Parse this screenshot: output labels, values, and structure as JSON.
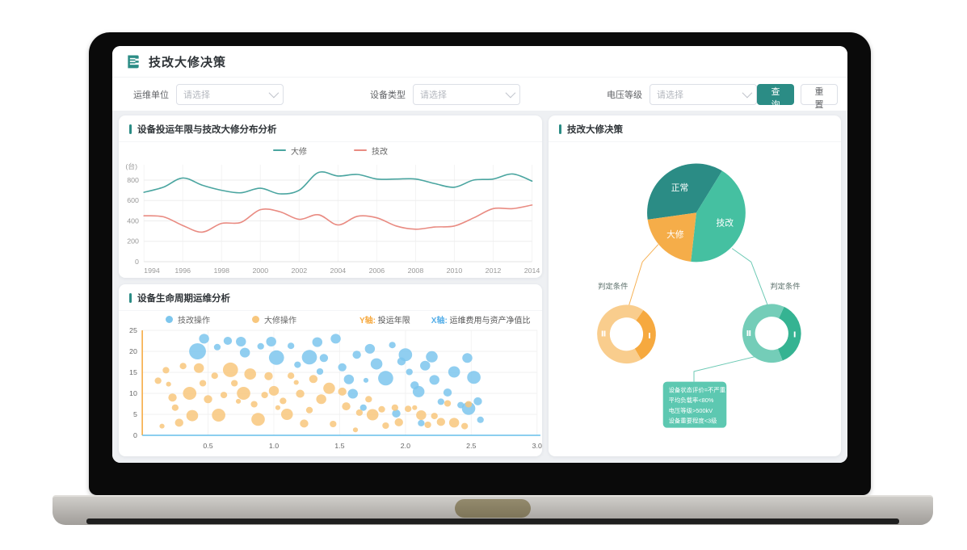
{
  "header": {
    "title": "技改大修决策"
  },
  "filters": {
    "fields": [
      {
        "label": "运维单位",
        "placeholder": "请选择"
      },
      {
        "label": "设备类型",
        "placeholder": "请选择"
      },
      {
        "label": "电压等级",
        "placeholder": "请选择"
      }
    ],
    "query_label": "查询",
    "reset_label": "重置"
  },
  "colors": {
    "teal": "#2b8c85",
    "bg": "#eef0f3"
  },
  "chart_data": [
    {
      "id": "line_chart",
      "type": "line",
      "title": "设备投运年限与技改大修分布分析",
      "unit_label": "(台)",
      "x": [
        1994,
        1995,
        1996,
        1997,
        1998,
        1999,
        2000,
        2001,
        2002,
        2003,
        2004,
        2005,
        2006,
        2007,
        2008,
        2009,
        2010,
        2011,
        2012,
        2013,
        2014
      ],
      "x_ticks": [
        1994,
        1996,
        1998,
        2000,
        2002,
        2004,
        2006,
        2008,
        2010,
        2012,
        2014
      ],
      "y_ticks": [
        0,
        200,
        400,
        600,
        800
      ],
      "ylim": [
        0,
        950
      ],
      "grid": true,
      "legend_position": "top-center",
      "series": [
        {
          "name": "大修",
          "color": "#4aa5a0",
          "values": [
            680,
            730,
            820,
            750,
            700,
            675,
            720,
            665,
            700,
            875,
            840,
            855,
            810,
            810,
            810,
            765,
            730,
            800,
            810,
            860,
            790
          ]
        },
        {
          "name": "技改",
          "color": "#e98b82",
          "values": [
            450,
            440,
            355,
            290,
            375,
            385,
            510,
            490,
            415,
            460,
            360,
            445,
            430,
            350,
            318,
            340,
            350,
            430,
            520,
            520,
            555
          ]
        }
      ]
    },
    {
      "id": "bubble_chart",
      "type": "scatter",
      "title": "设备生命周期运维分析",
      "xlim": [
        0,
        3.0
      ],
      "ylim": [
        0,
        25
      ],
      "x_ticks": [
        0.5,
        1.0,
        1.5,
        2.0,
        2.5,
        3.0
      ],
      "y_ticks": [
        0,
        5,
        10,
        15,
        20,
        25
      ],
      "y_axis_note": {
        "prefix": "Y轴:",
        "text": "投运年限",
        "color": "#f6a93f"
      },
      "x_axis_note": {
        "prefix": "X轴:",
        "text": "运维费用与资产净值比",
        "color": "#55aee8"
      },
      "y_axis_color": "#f6a93f",
      "x_axis_color": "#66bfea",
      "series": [
        {
          "name": "技改操作",
          "color": "#7dc6ed",
          "points": [
            [
              0.42,
              20,
              10
            ],
            [
              0.47,
              23,
              6
            ],
            [
              0.57,
              21,
              4
            ],
            [
              0.65,
              22.5,
              5
            ],
            [
              0.75,
              22.3,
              6
            ],
            [
              0.78,
              19.7,
              6
            ],
            [
              0.9,
              21.2,
              4
            ],
            [
              0.98,
              22.3,
              6
            ],
            [
              1.02,
              18.5,
              9
            ],
            [
              1.13,
              21.3,
              4
            ],
            [
              1.18,
              16.8,
              4
            ],
            [
              1.27,
              18.6,
              9
            ],
            [
              1.33,
              22.2,
              6
            ],
            [
              1.38,
              18.4,
              5
            ],
            [
              1.35,
              15.2,
              4
            ],
            [
              1.47,
              23,
              6
            ],
            [
              1.52,
              16.2,
              5
            ],
            [
              1.57,
              13.3,
              6
            ],
            [
              1.63,
              19.2,
              5
            ],
            [
              1.6,
              9.9,
              6
            ],
            [
              1.7,
              13.1,
              3
            ],
            [
              1.73,
              20.6,
              6
            ],
            [
              1.78,
              17,
              7
            ],
            [
              1.85,
              13.6,
              9
            ],
            [
              1.9,
              21.5,
              4
            ],
            [
              1.97,
              17.6,
              5
            ],
            [
              2.0,
              19.2,
              8
            ],
            [
              2.03,
              15.1,
              4
            ],
            [
              2.07,
              11.9,
              5
            ],
            [
              2.1,
              10.4,
              7
            ],
            [
              2.15,
              16.6,
              6
            ],
            [
              2.2,
              18.7,
              7
            ],
            [
              2.22,
              13.2,
              6
            ],
            [
              2.27,
              8,
              4
            ],
            [
              2.32,
              10.2,
              5
            ],
            [
              2.37,
              15.1,
              7
            ],
            [
              2.42,
              7.2,
              4
            ],
            [
              2.47,
              18.4,
              6
            ],
            [
              2.48,
              6.4,
              8
            ],
            [
              2.52,
              13.8,
              8
            ],
            [
              2.55,
              8.1,
              5
            ],
            [
              2.57,
              3.7,
              4
            ],
            [
              1.68,
              6.6,
              4
            ],
            [
              1.93,
              5.2,
              5
            ],
            [
              2.12,
              2.9,
              4
            ]
          ]
        },
        {
          "name": "大修操作",
          "color": "#f8c77d",
          "points": [
            [
              0.12,
              13,
              4
            ],
            [
              0.15,
              2.2,
              3
            ],
            [
              0.18,
              15.5,
              4
            ],
            [
              0.2,
              12.2,
              3
            ],
            [
              0.23,
              9,
              5
            ],
            [
              0.25,
              6.6,
              4
            ],
            [
              0.28,
              3,
              5
            ],
            [
              0.31,
              16.5,
              4
            ],
            [
              0.36,
              10,
              8
            ],
            [
              0.38,
              4.7,
              7
            ],
            [
              0.43,
              16,
              6
            ],
            [
              0.46,
              12.4,
              4
            ],
            [
              0.5,
              8.6,
              5
            ],
            [
              0.55,
              14.2,
              4
            ],
            [
              0.58,
              4.8,
              8
            ],
            [
              0.62,
              9.6,
              4
            ],
            [
              0.67,
              15.6,
              9
            ],
            [
              0.7,
              12.4,
              4
            ],
            [
              0.73,
              8.1,
              3
            ],
            [
              0.77,
              10,
              8
            ],
            [
              0.82,
              14.6,
              7
            ],
            [
              0.85,
              7.4,
              4
            ],
            [
              0.88,
              3.8,
              8
            ],
            [
              0.93,
              9.6,
              4
            ],
            [
              0.96,
              14.1,
              5
            ],
            [
              1.0,
              10.6,
              6
            ],
            [
              1.03,
              6.6,
              3
            ],
            [
              1.07,
              8.2,
              4
            ],
            [
              1.1,
              5,
              7
            ],
            [
              1.13,
              14.2,
              4
            ],
            [
              1.17,
              12.6,
              3
            ],
            [
              1.2,
              9.9,
              5
            ],
            [
              1.23,
              2.8,
              5
            ],
            [
              1.27,
              6,
              4
            ],
            [
              1.3,
              13.4,
              5
            ],
            [
              1.36,
              8.6,
              6
            ],
            [
              1.42,
              11.2,
              7
            ],
            [
              1.45,
              2.7,
              4
            ],
            [
              1.52,
              10.4,
              5
            ],
            [
              1.55,
              6.9,
              5
            ],
            [
              1.62,
              1.3,
              3
            ],
            [
              1.65,
              5.4,
              4
            ],
            [
              1.72,
              8.6,
              4
            ],
            [
              1.75,
              4.9,
              7
            ],
            [
              1.82,
              6.2,
              4
            ],
            [
              1.85,
              2.3,
              4
            ],
            [
              1.92,
              6.6,
              4
            ],
            [
              1.95,
              3.1,
              5
            ],
            [
              2.02,
              6.3,
              4
            ],
            [
              2.07,
              6.6,
              3
            ],
            [
              2.12,
              4.8,
              6
            ],
            [
              2.17,
              2.5,
              4
            ],
            [
              2.22,
              4.6,
              4
            ],
            [
              2.27,
              3.2,
              5
            ],
            [
              2.32,
              7.6,
              4
            ],
            [
              2.37,
              3,
              6
            ],
            [
              2.45,
              2.2,
              4
            ],
            [
              2.48,
              7.4,
              4
            ]
          ]
        }
      ]
    },
    {
      "id": "decision_pie",
      "type": "pie",
      "title": "技改大修决策",
      "start_angle": 262,
      "slices": [
        {
          "label": "正常",
          "pct": 36,
          "color": "#2b8c85"
        },
        {
          "label": "技改",
          "pct": 43,
          "color": "#45c0a1"
        },
        {
          "label": "大修",
          "pct": 21,
          "color": "#f5ad49"
        }
      ],
      "condition_label": "判定条件",
      "donuts": [
        {
          "name": "overhaul-condition",
          "start_angle": 35,
          "segments": [
            {
              "label": "Ⅰ",
              "pct": 32,
              "color": "#f6a93f"
            },
            {
              "label": "Ⅱ",
              "pct": 68,
              "color": "#f9cd8d"
            }
          ]
        },
        {
          "name": "retrofit-condition",
          "start_angle": 25,
          "segments": [
            {
              "label": "Ⅰ",
              "pct": 37,
              "color": "#35b392"
            },
            {
              "label": "Ⅱ",
              "pct": 63,
              "color": "#74cdb8"
            }
          ]
        }
      ],
      "tooltip": {
        "bg": "#5dc8b1",
        "lines": [
          "设备状态评价=不严重",
          "平均负载率<80%",
          "电压等级>500kV",
          "设备重要程度<3级"
        ]
      },
      "connector_colors": {
        "left": "#f6b052",
        "right": "#6cc9b4"
      }
    }
  ]
}
